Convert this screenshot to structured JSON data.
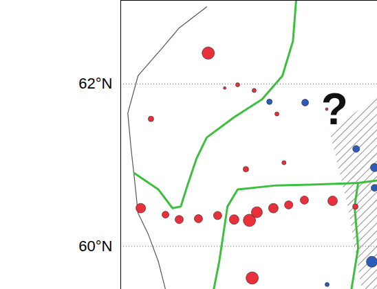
{
  "chart_data": {
    "type": "map",
    "xlim": [
      4.5,
      11.04
    ],
    "ylim": [
      59.47,
      63.03
    ],
    "yticks": [
      {
        "value": 60,
        "label": "60°N"
      },
      {
        "value": 62,
        "label": "62°N"
      }
    ],
    "grid": true,
    "tick_labels": "y",
    "coastline": {
      "color": "#555555",
      "lon": [
        6.69,
        5.99,
        5.55,
        4.94,
        4.68,
        4.76,
        4.85,
        4.94,
        5.2,
        5.46,
        5.64
      ],
      "lat": [
        62.95,
        62.69,
        62.44,
        62.1,
        61.64,
        61.22,
        60.83,
        60.41,
        60.15,
        59.81,
        59.47
      ]
    },
    "lines": [
      {
        "color": "#3cbf3c",
        "lon": [
          8.97,
          8.89,
          8.62,
          8.1,
          7.39,
          6.69,
          6.43,
          6.2,
          6.03,
          5.82,
          5.46,
          4.85
        ],
        "lat": [
          63.03,
          62.53,
          62.1,
          61.81,
          61.59,
          61.34,
          61.08,
          60.75,
          60.49,
          60.47,
          60.7,
          60.9
        ]
      },
      {
        "color": "#3cbf3c",
        "lon": [
          6.87,
          7.01,
          7.22,
          7.48,
          8.45,
          9.32,
          10.55,
          11.04
        ],
        "lat": [
          59.47,
          59.81,
          60.49,
          60.7,
          60.75,
          60.76,
          60.78,
          60.81
        ]
      },
      {
        "color": "#3cbf3c",
        "lon": [
          10.55,
          10.46,
          10.55,
          10.38
        ],
        "lat": [
          60.78,
          60.49,
          59.98,
          59.47
        ]
      }
    ],
    "hatched_region": {
      "lon": [
        9.82,
        11.04,
        11.04,
        10.64,
        10.29,
        9.82
      ],
      "lat": [
        61.42,
        61.85,
        59.47,
        59.47,
        60.49,
        61.42
      ]
    },
    "annotations": [
      {
        "text": "?",
        "lon": 9.95,
        "lat": 61.68
      }
    ],
    "series": [
      {
        "color": "#e8303a",
        "marker": "circle",
        "lon": [
          6.73,
          7.15,
          7.48,
          7.9,
          5.27,
          8.48,
          9.75,
          7.69,
          8.66,
          5.01,
          5.64,
          5.99,
          6.48,
          6.97,
          7.39,
          7.78,
          7.97,
          8.39,
          8.78,
          9.18,
          9.9,
          10.48,
          7.85
        ],
        "lat": [
          62.38,
          61.95,
          61.99,
          61.92,
          61.57,
          61.63,
          61.69,
          60.95,
          61.03,
          60.47,
          60.39,
          60.33,
          60.34,
          60.38,
          60.33,
          60.32,
          60.42,
          60.47,
          60.51,
          60.57,
          60.56,
          60.49,
          59.61
        ],
        "size": [
          9,
          2,
          3,
          3,
          4,
          3,
          2,
          4,
          3,
          7,
          5,
          6,
          6,
          6,
          7,
          9,
          8,
          7,
          6,
          6,
          7,
          4,
          9
        ]
      },
      {
        "color": "#2b5cb8",
        "marker": "circle",
        "lon": [
          8.29,
          9.2,
          10.5,
          10.97,
          10.97,
          10.9,
          9.76
        ],
        "lat": [
          61.78,
          61.77,
          61.2,
          60.97,
          60.72,
          59.81,
          59.53
        ],
        "size": [
          4,
          5,
          5,
          6,
          5,
          8,
          3
        ]
      }
    ]
  }
}
